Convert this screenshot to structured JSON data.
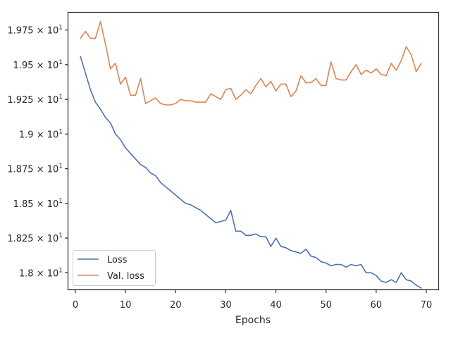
{
  "chart_data": {
    "type": "line",
    "xlabel": "Epochs",
    "ylabel": "",
    "xlim": [
      -1.4,
      72.4
    ],
    "ylim": [
      17.88,
      19.875
    ],
    "y_scale": "linear",
    "grid": false,
    "legend_position": "lower-left",
    "x_ticks": [
      0,
      10,
      20,
      30,
      40,
      50,
      60,
      70
    ],
    "x_tick_labels": [
      "0",
      "10",
      "20",
      "30",
      "40",
      "50",
      "60",
      "70"
    ],
    "y_ticks": [
      18.0,
      18.25,
      18.5,
      18.75,
      19.0,
      19.25,
      19.5,
      19.75
    ],
    "y_tick_labels": [
      {
        "mantissa": "1.8",
        "base": "× 10",
        "exp": "1"
      },
      {
        "mantissa": "1.825",
        "base": "× 10",
        "exp": "1"
      },
      {
        "mantissa": "1.85",
        "base": "× 10",
        "exp": "1"
      },
      {
        "mantissa": "1.875",
        "base": "× 10",
        "exp": "1"
      },
      {
        "mantissa": "1.9",
        "base": "× 10",
        "exp": "1"
      },
      {
        "mantissa": "1.925",
        "base": "× 10",
        "exp": "1"
      },
      {
        "mantissa": "1.95",
        "base": "× 10",
        "exp": "1"
      },
      {
        "mantissa": "1.975",
        "base": "× 10",
        "exp": "1"
      }
    ],
    "x": [
      1,
      2,
      3,
      4,
      5,
      6,
      7,
      8,
      9,
      10,
      11,
      12,
      13,
      14,
      15,
      16,
      17,
      18,
      19,
      20,
      21,
      22,
      23,
      24,
      25,
      26,
      27,
      28,
      29,
      30,
      31,
      32,
      33,
      34,
      35,
      36,
      37,
      38,
      39,
      40,
      41,
      42,
      43,
      44,
      45,
      46,
      47,
      48,
      49,
      50,
      51,
      52,
      53,
      54,
      55,
      56,
      57,
      58,
      59,
      60,
      61,
      62,
      63,
      64,
      65,
      66,
      67,
      68,
      69
    ],
    "series": [
      {
        "name": "Loss",
        "color": "#4c72b0",
        "values": [
          19.56,
          19.44,
          19.32,
          19.23,
          19.18,
          19.12,
          19.08,
          19.0,
          18.96,
          18.9,
          18.86,
          18.82,
          18.78,
          18.76,
          18.72,
          18.7,
          18.65,
          18.62,
          18.59,
          18.56,
          18.53,
          18.5,
          18.49,
          18.47,
          18.45,
          18.42,
          18.39,
          18.36,
          18.37,
          18.38,
          18.45,
          18.3,
          18.3,
          18.27,
          18.27,
          18.28,
          18.26,
          18.26,
          18.19,
          18.25,
          18.19,
          18.18,
          18.16,
          18.15,
          18.14,
          18.17,
          18.12,
          18.11,
          18.08,
          18.07,
          18.05,
          18.06,
          18.06,
          18.04,
          18.06,
          18.05,
          18.06,
          18.0,
          18.0,
          17.98,
          17.94,
          17.93,
          17.95,
          17.93,
          18.0,
          17.95,
          17.94,
          17.91,
          17.89
        ]
      },
      {
        "name": "Val. loss",
        "color": "#dd8452",
        "values": [
          19.69,
          19.74,
          19.69,
          19.69,
          19.81,
          19.65,
          19.47,
          19.51,
          19.36,
          19.41,
          19.28,
          19.28,
          19.4,
          19.22,
          19.24,
          19.26,
          19.22,
          19.21,
          19.21,
          19.22,
          19.25,
          19.24,
          19.24,
          19.23,
          19.23,
          19.23,
          19.29,
          19.27,
          19.25,
          19.32,
          19.33,
          19.25,
          19.28,
          19.32,
          19.29,
          19.35,
          19.4,
          19.34,
          19.38,
          19.31,
          19.36,
          19.36,
          19.27,
          19.31,
          19.42,
          19.37,
          19.37,
          19.4,
          19.35,
          19.35,
          19.52,
          19.4,
          19.39,
          19.39,
          19.45,
          19.5,
          19.43,
          19.46,
          19.44,
          19.47,
          19.43,
          19.42,
          19.51,
          19.46,
          19.53,
          19.63,
          19.57,
          19.45,
          19.51
        ]
      }
    ]
  }
}
